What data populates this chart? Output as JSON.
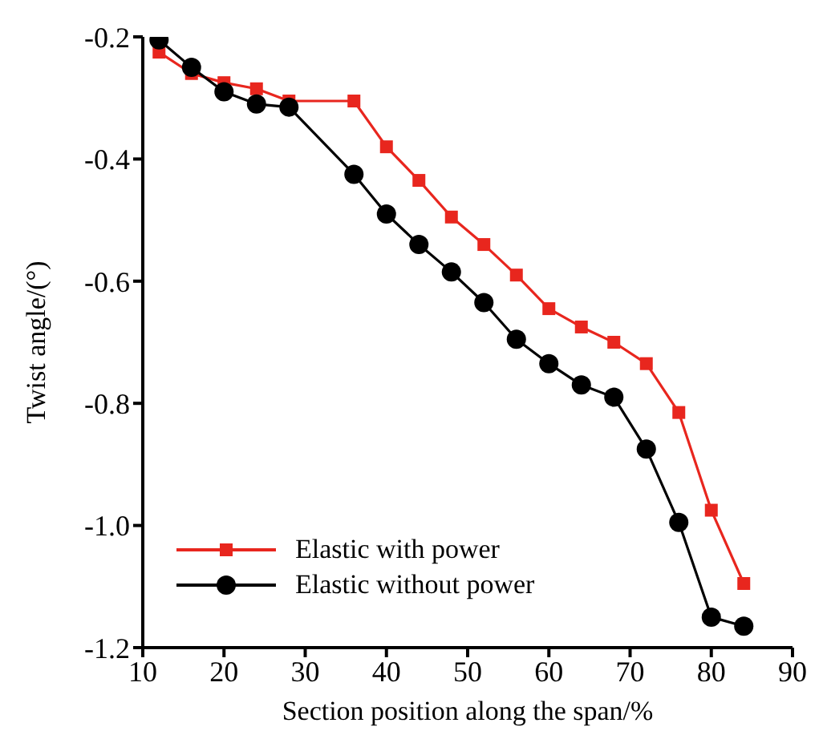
{
  "chart_data": {
    "type": "line",
    "xlabel": "Section position along the span/%",
    "ylabel": "Twist angle/(°)",
    "xlim": [
      10,
      90
    ],
    "xticks": [
      10,
      20,
      30,
      40,
      50,
      60,
      70,
      80,
      90
    ],
    "ylim": [
      -1.2,
      -0.2
    ],
    "yticks": [
      -1.2,
      {
        "value": -1,
        "label": "-1.0"
      },
      -0.8,
      -0.6,
      -0.4,
      -0.2
    ],
    "x": [
      12,
      16,
      20,
      24,
      28,
      36,
      40,
      44,
      48,
      52,
      56,
      60,
      64,
      68,
      72,
      76,
      80,
      84
    ],
    "grid": false,
    "legend": "bottom left",
    "line_style": "solid",
    "series": [
      {
        "name": "Elastic with power",
        "color": "#e8261e",
        "marker": "square",
        "values": [
          -0.225,
          -0.26,
          -0.275,
          -0.285,
          -0.305,
          -0.305,
          -0.38,
          -0.435,
          -0.495,
          -0.54,
          -0.59,
          -0.645,
          -0.675,
          -0.7,
          -0.735,
          -0.815,
          -0.975,
          -1.095
        ]
      },
      {
        "name": "Elastic without power",
        "color": "#000000",
        "marker": "circle",
        "values": [
          -0.205,
          -0.25,
          -0.29,
          -0.31,
          -0.315,
          -0.425,
          -0.49,
          -0.54,
          -0.585,
          -0.635,
          -0.695,
          -0.735,
          -0.77,
          -0.79,
          -0.875,
          -0.995,
          -1.15,
          -1.165
        ]
      }
    ]
  }
}
